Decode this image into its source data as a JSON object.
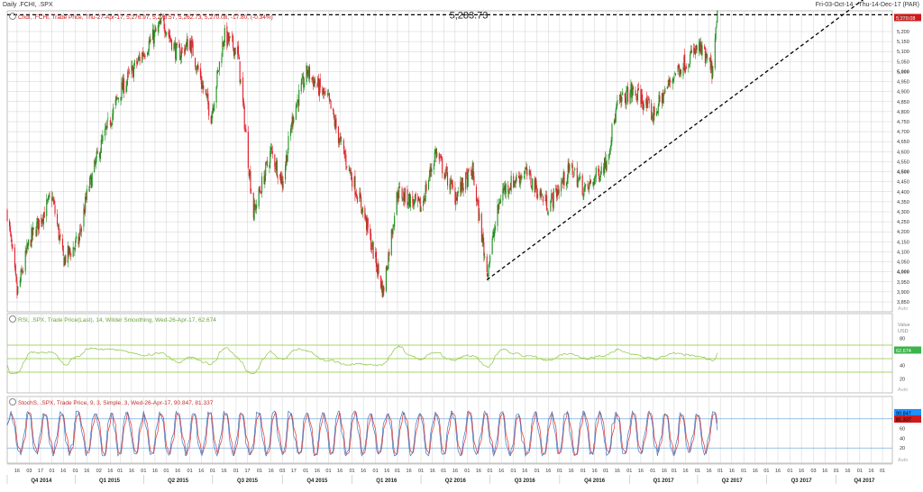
{
  "header": {
    "left": "Daily .FCHI, .SPX",
    "right": "Fri-03-Oct-14 - Thu-14-Dec-17 (PAR)"
  },
  "panels": {
    "price": {
      "legend": "Cndl, .FCHI, Trade Price, Thu-27-Apr-17, 5,276.97, 5,278.57, 5,262.73, 5,270.08, -17.80, (-0.34%)",
      "unit_label": "Price",
      "axis_badge": "5,270.08",
      "annotation": "5,283.73",
      "auto": "Auto",
      "ticks": [
        "5,200",
        "5,150",
        "5,100",
        "5,050",
        "5,000",
        "4,950",
        "4,900",
        "4,850",
        "4,800",
        "4,750",
        "4,700",
        "4,650",
        "4,600",
        "4,550",
        "4,500",
        "4,450",
        "4,400",
        "4,350",
        "4,300",
        "4,250",
        "4,200",
        "4,150",
        "4,100",
        "4,050",
        "4,000",
        "3,950",
        "3,900",
        "3,850"
      ]
    },
    "rsi": {
      "legend": "RSI, .SPX, Trade Price(Last), 14, Wilder Smoothing, Wed-26-Apr-17, 62.674",
      "unit_label": "Value",
      "unit_sub": "USD",
      "axis_badge": "62.674",
      "auto": "Auto",
      "ticks": [
        "80",
        "40",
        "20"
      ]
    },
    "stoch": {
      "legend": "StochS, .SPX, Trade Price, 9, 3, Simple, 3, Wed-26-Apr-17, 90.847, 81.337",
      "badge1": "90.847",
      "badge2": "81.337",
      "auto": "Auto",
      "ticks": [
        "80",
        "60",
        "40",
        "20"
      ]
    }
  },
  "xaxis": {
    "days": [
      "16",
      "03",
      "17",
      "01",
      "16",
      "01",
      "16",
      "02",
      "16",
      "01",
      "16",
      "01",
      "16",
      "01",
      "16",
      "01",
      "16",
      "01",
      "16",
      "01",
      "17",
      "01",
      "16",
      "03",
      "17",
      "01",
      "16",
      "01",
      "16",
      "01",
      "16",
      "01",
      "16",
      "01",
      "16",
      "01",
      "16",
      "01",
      "16",
      "01",
      "16",
      "01",
      "16",
      "01",
      "16",
      "01",
      "16",
      "01",
      "16",
      "01",
      "16",
      "01",
      "16",
      "01",
      "16",
      "01",
      "16",
      "01",
      "16",
      "01",
      "16",
      "01",
      "16",
      "01",
      "16",
      "01",
      "16",
      "01",
      "16",
      "03",
      "16",
      "01",
      "16",
      "01",
      "16",
      "01",
      "16",
      "01",
      "16",
      "01"
    ],
    "quarters": [
      "Q4 2014",
      "Q1 2015",
      "Q2 2015",
      "Q3 2015",
      "Q4 2015",
      "Q1 2016",
      "Q2 2016",
      "Q3 2016",
      "Q4 2016",
      "Q1 2017",
      "Q2 2017",
      "Q3 2017",
      "Q4 2017"
    ]
  },
  "colors": {
    "up": "#1f8f1f",
    "down": "#e0202c",
    "rsi": "#8cc63f",
    "stoch_k": "#3a78c8",
    "stoch_d": "#e0302c",
    "grid": "#d0d0d0",
    "badge_red": "#d01a1a",
    "badge_green": "#3cb44b",
    "badge_blue": "#1e90ff"
  },
  "chart_data": [
    {
      "type": "candlestick",
      "title": "Daily .FCHI",
      "ylabel": "Price",
      "ylim": [
        3840,
        5240
      ],
      "xlim": [
        "2014-10-03",
        "2017-12-14"
      ],
      "grid": true,
      "legend_placement": "top-left",
      "horizontal_line": 5283.73,
      "trendline": {
        "from": [
          "2016-06-27",
          3960
        ],
        "to": [
          "2017-11-20",
          5400
        ]
      },
      "last_close": 5270.08,
      "approx_closes": [
        {
          "x": "2014-10-03",
          "y": 4300
        },
        {
          "x": "2014-10-16",
          "y": 3890
        },
        {
          "x": "2014-11-01",
          "y": 4150
        },
        {
          "x": "2014-12-01",
          "y": 4380
        },
        {
          "x": "2014-12-16",
          "y": 4060
        },
        {
          "x": "2015-01-05",
          "y": 4150
        },
        {
          "x": "2015-01-16",
          "y": 4380
        },
        {
          "x": "2015-02-01",
          "y": 4600
        },
        {
          "x": "2015-03-01",
          "y": 4900
        },
        {
          "x": "2015-04-01",
          "y": 5100
        },
        {
          "x": "2015-04-27",
          "y": 5250
        },
        {
          "x": "2015-05-16",
          "y": 5080
        },
        {
          "x": "2015-06-01",
          "y": 5150
        },
        {
          "x": "2015-06-29",
          "y": 4780
        },
        {
          "x": "2015-07-16",
          "y": 5180
        },
        {
          "x": "2015-08-03",
          "y": 5100
        },
        {
          "x": "2015-08-24",
          "y": 4290
        },
        {
          "x": "2015-09-16",
          "y": 4600
        },
        {
          "x": "2015-10-01",
          "y": 4450
        },
        {
          "x": "2015-10-16",
          "y": 4800
        },
        {
          "x": "2015-11-03",
          "y": 5000
        },
        {
          "x": "2015-12-01",
          "y": 4850
        },
        {
          "x": "2015-12-16",
          "y": 4650
        },
        {
          "x": "2016-01-16",
          "y": 4300
        },
        {
          "x": "2016-02-11",
          "y": 3900
        },
        {
          "x": "2016-03-01",
          "y": 4400
        },
        {
          "x": "2016-04-01",
          "y": 4320
        },
        {
          "x": "2016-04-20",
          "y": 4600
        },
        {
          "x": "2016-05-16",
          "y": 4380
        },
        {
          "x": "2016-06-08",
          "y": 4500
        },
        {
          "x": "2016-06-27",
          "y": 4000
        },
        {
          "x": "2016-07-16",
          "y": 4400
        },
        {
          "x": "2016-08-16",
          "y": 4500
        },
        {
          "x": "2016-09-16",
          "y": 4330
        },
        {
          "x": "2016-10-16",
          "y": 4520
        },
        {
          "x": "2016-11-04",
          "y": 4400
        },
        {
          "x": "2016-12-01",
          "y": 4550
        },
        {
          "x": "2016-12-16",
          "y": 4830
        },
        {
          "x": "2017-01-02",
          "y": 4900
        },
        {
          "x": "2017-01-16",
          "y": 4870
        },
        {
          "x": "2017-02-01",
          "y": 4780
        },
        {
          "x": "2017-03-01",
          "y": 4990
        },
        {
          "x": "2017-04-03",
          "y": 5120
        },
        {
          "x": "2017-04-21",
          "y": 5000
        },
        {
          "x": "2017-04-27",
          "y": 5270.08
        }
      ]
    },
    {
      "type": "line",
      "title": "RSI .SPX 14 Wilder Smoothing",
      "ylim": [
        0,
        100
      ],
      "reference_lines": [
        70,
        50,
        30
      ],
      "last_value": 62.674,
      "approx_values_mean": 55,
      "range_observed": [
        28,
        80
      ]
    },
    {
      "type": "line",
      "title": "StochS .SPX 9 3 Simple 3",
      "ylim": [
        0,
        100
      ],
      "reference_lines": [
        80,
        20
      ],
      "series": [
        {
          "name": "%K",
          "last_value": 90.847
        },
        {
          "name": "%D",
          "last_value": 81.337
        }
      ]
    }
  ]
}
